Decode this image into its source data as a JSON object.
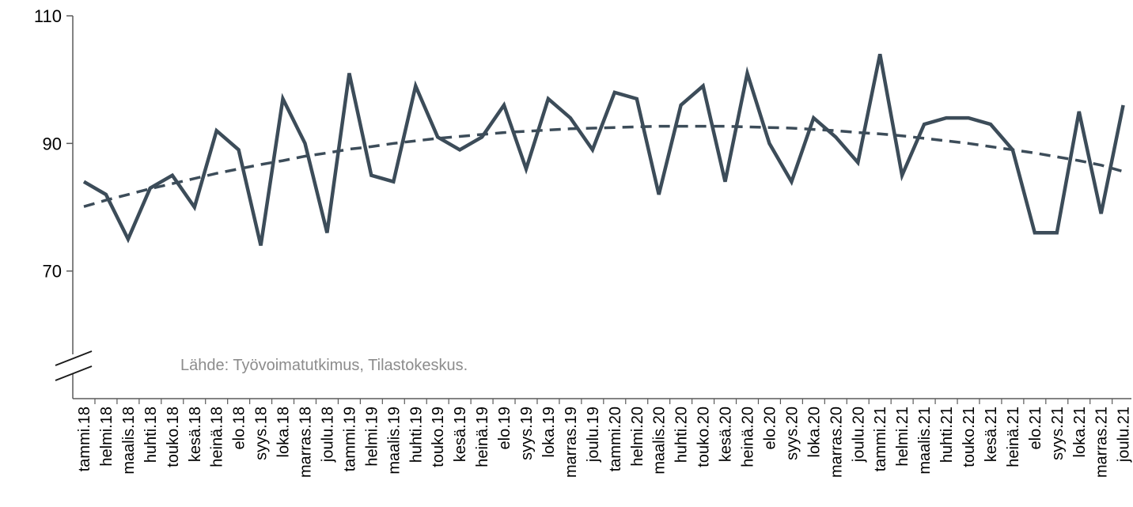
{
  "chart_data": {
    "type": "line",
    "ylim": [
      50,
      110
    ],
    "yticks": [
      70,
      90,
      110
    ],
    "axis_break": true,
    "grid": false,
    "categories": [
      "tammi.18",
      "helmi.18",
      "maalis.18",
      "huhti.18",
      "touko.18",
      "kesä.18",
      "heinä.18",
      "elo.18",
      "syys.18",
      "loka.18",
      "marras.18",
      "joulu.18",
      "tammi.19",
      "helmi.19",
      "maalis.19",
      "huhti.19",
      "touko.19",
      "kesä.19",
      "heinä.19",
      "elo.19",
      "syys.19",
      "loka.19",
      "marras.19",
      "joulu.19",
      "tammi.20",
      "helmi.20",
      "maalis.20",
      "huhti.20",
      "touko.20",
      "kesä.20",
      "heinä.20",
      "elo.20",
      "syys.20",
      "loka.20",
      "marras.20",
      "joulu.20",
      "tammi.21",
      "helmi.21",
      "maalis.21",
      "huhti.21",
      "touko.21",
      "kesä.21",
      "heinä.21",
      "elo.21",
      "syys.21",
      "loka.21",
      "marras.21",
      "joulu.21"
    ],
    "series": [
      {
        "style": "solid",
        "color": "#3c4c59",
        "values": [
          84,
          82,
          75,
          83,
          85,
          80,
          92,
          89,
          74,
          97,
          90,
          76,
          101,
          85,
          84,
          99,
          91,
          89,
          91,
          96,
          86,
          97,
          94,
          89,
          98,
          97,
          82,
          96,
          99,
          84,
          101,
          90,
          84,
          94,
          91,
          87,
          104,
          85,
          93,
          94,
          94,
          93,
          89,
          76,
          76,
          95,
          79,
          96
        ]
      },
      {
        "style": "dashed",
        "color": "#3c4c59",
        "values": [
          80.1,
          81.1,
          82.0,
          82.9,
          83.7,
          84.5,
          85.3,
          86.0,
          86.7,
          87.3,
          88.0,
          88.5,
          89.1,
          89.5,
          90.0,
          90.4,
          90.8,
          91.1,
          91.4,
          91.7,
          91.9,
          92.1,
          92.3,
          92.4,
          92.5,
          92.6,
          92.7,
          92.7,
          92.7,
          92.7,
          92.6,
          92.5,
          92.4,
          92.2,
          92.0,
          91.7,
          91.5,
          91.2,
          90.8,
          90.4,
          90.0,
          89.5,
          89.0,
          88.5,
          87.9,
          87.3,
          86.6,
          85.6
        ]
      }
    ],
    "annotation": "Lähde: Työvoimatutkimus, Tilastokeskus."
  }
}
